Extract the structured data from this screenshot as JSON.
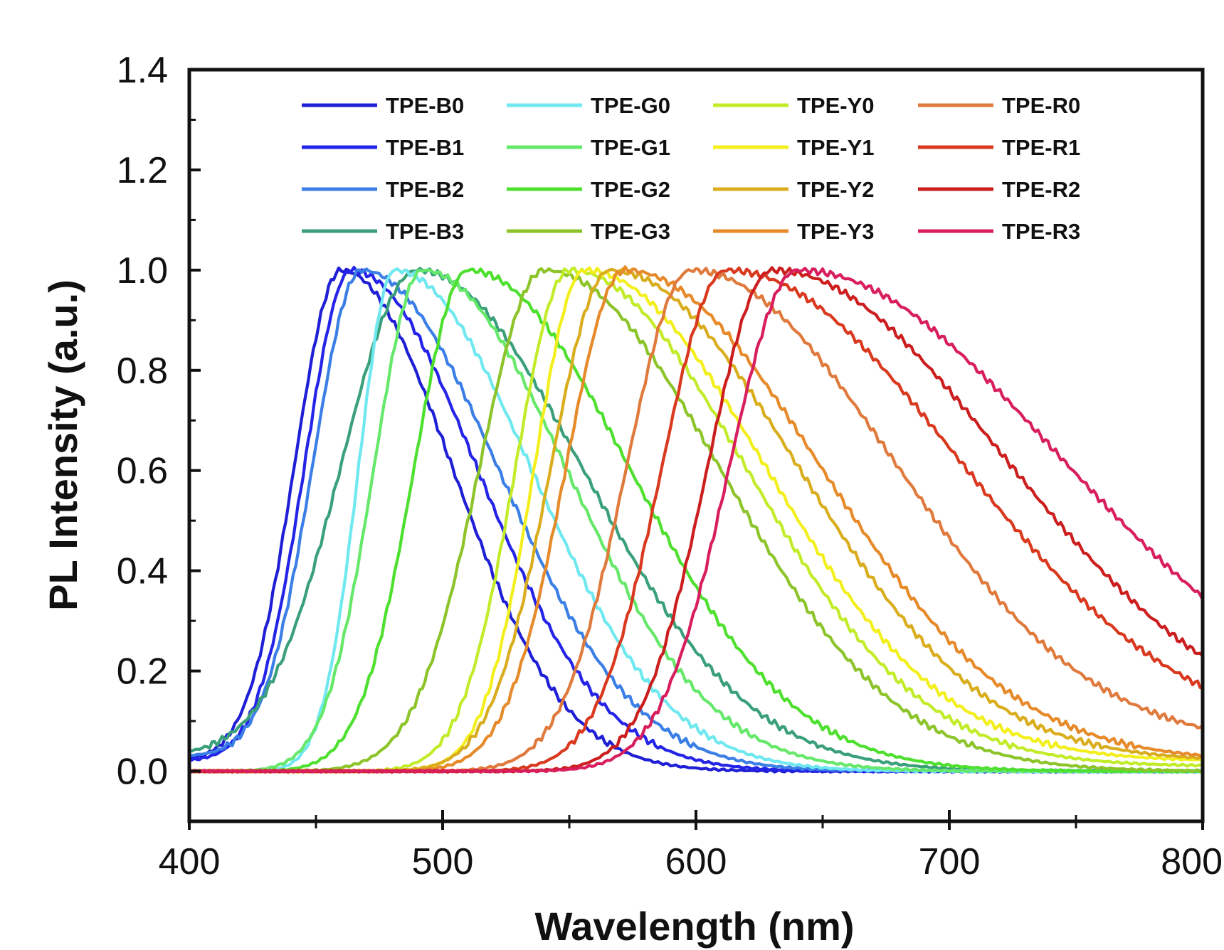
{
  "chart_data": {
    "type": "line",
    "title": "",
    "xlabel": "Wavelength (nm)",
    "ylabel": "PL Intensity (a.u.)",
    "xlim": [
      400,
      800
    ],
    "ylim": [
      -0.1,
      1.4
    ],
    "xticks": [
      400,
      500,
      600,
      700,
      800
    ],
    "xtick_labels": [
      "400",
      "500",
      "600",
      "700",
      "800"
    ],
    "yticks": [
      0.0,
      0.2,
      0.4,
      0.6,
      0.8,
      1.0,
      1.2,
      1.4
    ],
    "ytick_labels": [
      "0.0",
      "0.2",
      "0.4",
      "0.6",
      "0.8",
      "1.0",
      "1.2",
      "1.4"
    ],
    "legend_position": "top",
    "series": [
      {
        "name": "TPE-B0",
        "color": "#1f1fd6",
        "peak": 460,
        "wl": 26,
        "wr": 62,
        "base_left": 0.02,
        "base_right": 0.0
      },
      {
        "name": "TPE-B1",
        "color": "#2424e8",
        "peak": 464,
        "wl": 26,
        "wr": 70,
        "base_left": 0.02,
        "base_right": 0.0
      },
      {
        "name": "TPE-B2",
        "color": "#3b7fe6",
        "peak": 468,
        "wl": 27,
        "wr": 76,
        "base_left": 0.03,
        "base_right": 0.0
      },
      {
        "name": "TPE-B3",
        "color": "#3aa07a",
        "peak": 490,
        "wl": 42,
        "wr": 92,
        "base_left": 0.03,
        "base_right": 0.0
      },
      {
        "name": "TPE-G0",
        "color": "#6fe8ef",
        "peak": 481,
        "wl": 20,
        "wr": 76,
        "base_left": 0.0,
        "base_right": 0.0
      },
      {
        "name": "TPE-G1",
        "color": "#66e86a",
        "peak": 492,
        "wl": 27,
        "wr": 80,
        "base_left": 0.0,
        "base_right": 0.0
      },
      {
        "name": "TPE-G2",
        "color": "#4ee02e",
        "peak": 510,
        "wl": 30,
        "wr": 90,
        "base_left": 0.0,
        "base_right": 0.0
      },
      {
        "name": "TPE-G3",
        "color": "#8cc42a",
        "peak": 540,
        "wl": 36,
        "wr": 98,
        "base_left": 0.0,
        "base_right": 0.0
      },
      {
        "name": "TPE-Y0",
        "color": "#c2ec2a",
        "peak": 550,
        "wl": 30,
        "wr": 98,
        "base_left": 0.0,
        "base_right": 0.01
      },
      {
        "name": "TPE-Y1",
        "color": "#f3ef1c",
        "peak": 556,
        "wl": 28,
        "wr": 100,
        "base_left": 0.0,
        "base_right": 0.02
      },
      {
        "name": "TPE-Y2",
        "color": "#d9ad1e",
        "peak": 566,
        "wl": 33,
        "wr": 104,
        "base_left": 0.0,
        "base_right": 0.02
      },
      {
        "name": "TPE-Y3",
        "color": "#e68a2a",
        "peak": 572,
        "wl": 33,
        "wr": 108,
        "base_left": 0.0,
        "base_right": 0.02
      },
      {
        "name": "TPE-R0",
        "color": "#e07a3c",
        "peak": 598,
        "wl": 36,
        "wr": 112,
        "base_left": 0.0,
        "base_right": 0.05
      },
      {
        "name": "TPE-R1",
        "color": "#d9391e",
        "peak": 612,
        "wl": 36,
        "wr": 128,
        "base_left": 0.0,
        "base_right": 0.06
      },
      {
        "name": "TPE-R2",
        "color": "#cc1e1e",
        "peak": 630,
        "wl": 36,
        "wr": 128,
        "base_left": 0.0,
        "base_right": 0.07
      },
      {
        "name": "TPE-R3",
        "color": "#d81e5e",
        "peak": 640,
        "wl": 38,
        "wr": 144,
        "base_left": 0.0,
        "base_right": 0.08
      }
    ]
  }
}
